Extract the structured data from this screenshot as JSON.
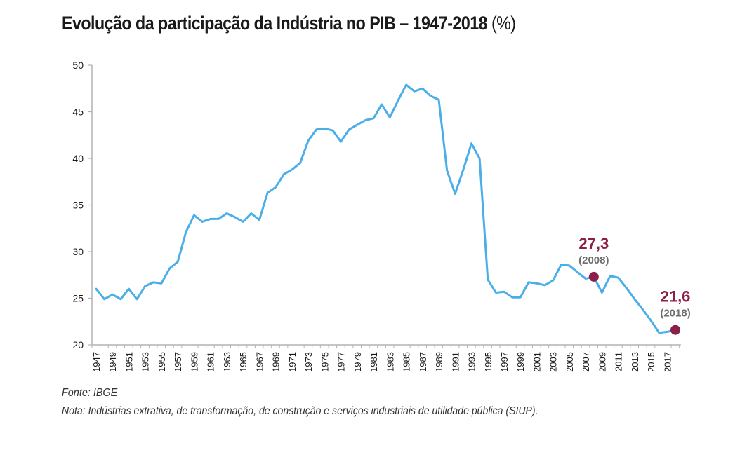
{
  "chart_data": {
    "type": "line",
    "title": "Evolução da participação da Indústria no PIB – 1947-2018",
    "title_unit": "(%)",
    "xlabel": "",
    "ylabel": "",
    "ylim": [
      20,
      50
    ],
    "yticks": [
      20,
      25,
      30,
      35,
      40,
      45,
      50
    ],
    "grid": false,
    "legend": "none",
    "line_color": "#4aaee8",
    "highlight_color": "#8b1f47",
    "x": [
      1947,
      1948,
      1949,
      1950,
      1951,
      1952,
      1953,
      1954,
      1955,
      1956,
      1957,
      1958,
      1959,
      1960,
      1961,
      1962,
      1963,
      1964,
      1965,
      1966,
      1967,
      1968,
      1969,
      1970,
      1971,
      1972,
      1973,
      1974,
      1975,
      1976,
      1977,
      1978,
      1979,
      1980,
      1981,
      1982,
      1983,
      1984,
      1985,
      1986,
      1987,
      1988,
      1989,
      1990,
      1991,
      1992,
      1993,
      1994,
      1995,
      1996,
      1997,
      1998,
      1999,
      2000,
      2001,
      2002,
      2003,
      2004,
      2005,
      2006,
      2007,
      2008,
      2009,
      2010,
      2011,
      2012,
      2013,
      2014,
      2015,
      2016,
      2017,
      2018
    ],
    "xtick_labels": [
      "1947",
      "1949",
      "1951",
      "1953",
      "1955",
      "1957",
      "1959",
      "1961",
      "1963",
      "1965",
      "1967",
      "1969",
      "1971",
      "1973",
      "1975",
      "1977",
      "1979",
      "1981",
      "1983",
      "1985",
      "1987",
      "1989",
      "1991",
      "1993",
      "1995",
      "1997",
      "1999",
      "2001",
      "2003",
      "2005",
      "2007",
      "2009",
      "2011",
      "2013",
      "2015",
      "2017"
    ],
    "series": [
      {
        "name": "Participação da Indústria no PIB (%)",
        "values": [
          26.0,
          24.9,
          25.4,
          24.9,
          26.0,
          24.9,
          26.3,
          26.7,
          26.6,
          28.2,
          28.9,
          32.1,
          33.9,
          33.2,
          33.5,
          33.5,
          34.1,
          33.7,
          33.2,
          34.1,
          33.4,
          36.3,
          36.9,
          38.3,
          38.8,
          39.5,
          41.9,
          43.1,
          43.2,
          43.0,
          41.8,
          43.1,
          43.6,
          44.1,
          44.3,
          45.8,
          44.4,
          46.2,
          47.9,
          47.2,
          47.5,
          46.7,
          46.3,
          38.7,
          36.2,
          38.8,
          41.6,
          40.0,
          27.0,
          25.6,
          25.7,
          25.1,
          25.1,
          26.7,
          26.6,
          26.4,
          26.9,
          28.6,
          28.5,
          27.8,
          27.1,
          27.3,
          25.6,
          27.4,
          27.2,
          26.1,
          24.9,
          23.8,
          22.6,
          21.3,
          21.4,
          21.6
        ]
      }
    ],
    "annotations": [
      {
        "year": 2008,
        "value": 27.3,
        "value_label": "27,3",
        "year_label": "(2008)"
      },
      {
        "year": 2018,
        "value": 21.6,
        "value_label": "21,6",
        "year_label": "(2018)"
      }
    ]
  },
  "footer": {
    "source": "Fonte: IBGE",
    "note": "Nota: Indústrias extrativa, de transformação, de construção e serviços industriais de utilidade pública (SIUP)."
  }
}
